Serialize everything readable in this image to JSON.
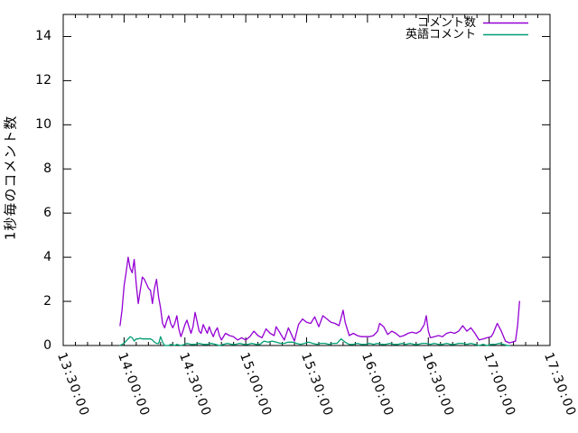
{
  "chart_data": {
    "type": "line",
    "title": "",
    "xlabel": "",
    "ylabel": "1秒毎のコメント数",
    "xlim": [
      "13:30:00",
      "17:30:00"
    ],
    "ylim": [
      0,
      15
    ],
    "grid": false,
    "legend_position": "top-right-inside",
    "x_major_ticks": [
      "13:30:00",
      "14:00:00",
      "14:30:00",
      "15:00:00",
      "15:30:00",
      "16:00:00",
      "16:30:00",
      "17:00:00",
      "17:30:00"
    ],
    "x_minor_tick_interval_minutes": 6,
    "y_ticks": [
      0,
      2,
      4,
      6,
      8,
      10,
      12,
      14
    ],
    "colors": {
      "axis": "#000000",
      "background": "#ffffff",
      "text": "#000000"
    },
    "series": [
      {
        "name": "コメント数",
        "color": "#9400D3",
        "points": [
          [
            "13:58",
            0.9
          ],
          [
            "13:59",
            1.6
          ],
          [
            "14:00",
            2.7
          ],
          [
            "14:01",
            3.3
          ],
          [
            "14:02",
            4.0
          ],
          [
            "14:03",
            3.5
          ],
          [
            "14:04",
            3.3
          ],
          [
            "14:05",
            3.9
          ],
          [
            "14:06",
            2.8
          ],
          [
            "14:07",
            1.9
          ],
          [
            "14:08",
            2.5
          ],
          [
            "14:09",
            3.1
          ],
          [
            "14:10",
            3.0
          ],
          [
            "14:11",
            2.8
          ],
          [
            "14:12",
            2.6
          ],
          [
            "14:13",
            2.5
          ],
          [
            "14:14",
            1.9
          ],
          [
            "14:15",
            2.6
          ],
          [
            "14:16",
            3.0
          ],
          [
            "14:17",
            2.2
          ],
          [
            "14:18",
            1.7
          ],
          [
            "14:19",
            1.0
          ],
          [
            "14:20",
            0.8
          ],
          [
            "14:21",
            1.1
          ],
          [
            "14:22",
            1.35
          ],
          [
            "14:23",
            1.0
          ],
          [
            "14:24",
            0.8
          ],
          [
            "14:25",
            1.0
          ],
          [
            "14:26",
            1.35
          ],
          [
            "14:27",
            0.75
          ],
          [
            "14:28",
            0.4
          ],
          [
            "14:29",
            0.65
          ],
          [
            "14:30",
            0.95
          ],
          [
            "14:31",
            1.15
          ],
          [
            "14:32",
            0.85
          ],
          [
            "14:33",
            0.55
          ],
          [
            "14:34",
            0.85
          ],
          [
            "14:35",
            1.5
          ],
          [
            "14:36",
            1.1
          ],
          [
            "14:37",
            0.65
          ],
          [
            "14:38",
            0.55
          ],
          [
            "14:39",
            0.95
          ],
          [
            "14:40",
            0.75
          ],
          [
            "14:41",
            0.55
          ],
          [
            "14:42",
            0.85
          ],
          [
            "14:43",
            0.6
          ],
          [
            "14:44",
            0.4
          ],
          [
            "14:45",
            0.65
          ],
          [
            "14:46",
            0.8
          ],
          [
            "14:47",
            0.45
          ],
          [
            "14:48",
            0.25
          ],
          [
            "14:50",
            0.55
          ],
          [
            "14:52",
            0.45
          ],
          [
            "14:54",
            0.4
          ],
          [
            "14:56",
            0.25
          ],
          [
            "14:58",
            0.35
          ],
          [
            "15:00",
            0.25
          ],
          [
            "15:02",
            0.4
          ],
          [
            "15:04",
            0.65
          ],
          [
            "15:06",
            0.45
          ],
          [
            "15:08",
            0.35
          ],
          [
            "15:10",
            0.75
          ],
          [
            "15:12",
            0.55
          ],
          [
            "15:14",
            0.45
          ],
          [
            "15:15",
            0.85
          ],
          [
            "15:17",
            0.55
          ],
          [
            "15:19",
            0.25
          ],
          [
            "15:21",
            0.8
          ],
          [
            "15:23",
            0.4
          ],
          [
            "15:24",
            0.2
          ],
          [
            "15:26",
            0.95
          ],
          [
            "15:28",
            1.2
          ],
          [
            "15:30",
            1.05
          ],
          [
            "15:32",
            1.0
          ],
          [
            "15:34",
            1.3
          ],
          [
            "15:36",
            0.85
          ],
          [
            "15:38",
            1.35
          ],
          [
            "15:40",
            1.2
          ],
          [
            "15:42",
            1.05
          ],
          [
            "15:44",
            1.0
          ],
          [
            "15:46",
            0.9
          ],
          [
            "15:48",
            1.6
          ],
          [
            "15:49",
            1.05
          ],
          [
            "15:51",
            0.45
          ],
          [
            "15:53",
            0.55
          ],
          [
            "15:55",
            0.45
          ],
          [
            "15:57",
            0.4
          ],
          [
            "15:59",
            0.4
          ],
          [
            "16:01",
            0.4
          ],
          [
            "16:03",
            0.45
          ],
          [
            "16:05",
            0.65
          ],
          [
            "16:06",
            1.0
          ],
          [
            "16:08",
            0.85
          ],
          [
            "16:10",
            0.5
          ],
          [
            "16:12",
            0.65
          ],
          [
            "16:14",
            0.55
          ],
          [
            "16:16",
            0.4
          ],
          [
            "16:18",
            0.45
          ],
          [
            "16:20",
            0.55
          ],
          [
            "16:22",
            0.6
          ],
          [
            "16:24",
            0.55
          ],
          [
            "16:26",
            0.65
          ],
          [
            "16:28",
            0.95
          ],
          [
            "16:29",
            1.35
          ],
          [
            "16:30",
            0.65
          ],
          [
            "16:31",
            0.35
          ],
          [
            "16:33",
            0.4
          ],
          [
            "16:35",
            0.45
          ],
          [
            "16:37",
            0.4
          ],
          [
            "16:39",
            0.55
          ],
          [
            "16:41",
            0.6
          ],
          [
            "16:43",
            0.55
          ],
          [
            "16:45",
            0.65
          ],
          [
            "16:47",
            0.9
          ],
          [
            "16:49",
            0.65
          ],
          [
            "16:51",
            0.8
          ],
          [
            "16:53",
            0.55
          ],
          [
            "16:55",
            0.25
          ],
          [
            "16:57",
            0.3
          ],
          [
            "16:59",
            0.35
          ],
          [
            "17:01",
            0.4
          ],
          [
            "17:02",
            0.55
          ],
          [
            "17:04",
            1.0
          ],
          [
            "17:06",
            0.65
          ],
          [
            "17:08",
            0.2
          ],
          [
            "17:10",
            0.12
          ],
          [
            "17:13",
            0.2
          ],
          [
            "17:14",
            0.9
          ],
          [
            "17:15",
            2.0
          ]
        ]
      },
      {
        "name": "英語コメント",
        "color": "#009E73",
        "points": [
          [
            "13:58",
            0.0
          ],
          [
            "13:59",
            0.05
          ],
          [
            "14:00",
            0.1
          ],
          [
            "14:01",
            0.2
          ],
          [
            "14:02",
            0.3
          ],
          [
            "14:03",
            0.4
          ],
          [
            "14:04",
            0.35
          ],
          [
            "14:05",
            0.2
          ],
          [
            "14:06",
            0.3
          ],
          [
            "14:07",
            0.3
          ],
          [
            "14:08",
            0.33
          ],
          [
            "14:09",
            0.3
          ],
          [
            "14:10",
            0.3
          ],
          [
            "14:11",
            0.3
          ],
          [
            "14:12",
            0.3
          ],
          [
            "14:13",
            0.3
          ],
          [
            "14:14",
            0.25
          ],
          [
            "14:15",
            0.15
          ],
          [
            "14:16",
            0.1
          ],
          [
            "14:17",
            0.08
          ],
          [
            "14:18",
            0.4
          ],
          [
            "14:19",
            0.15
          ],
          [
            "14:20",
            0.0
          ],
          [
            "14:22",
            0.0
          ],
          [
            "14:23",
            0.05
          ],
          [
            "14:25",
            0.0
          ],
          [
            "14:26",
            0.05
          ],
          [
            "14:28",
            0.0
          ],
          [
            "14:30",
            0.05
          ],
          [
            "14:31",
            0.1
          ],
          [
            "14:33",
            0.05
          ],
          [
            "14:35",
            0.05
          ],
          [
            "14:37",
            0.1
          ],
          [
            "14:39",
            0.05
          ],
          [
            "14:41",
            0.05
          ],
          [
            "14:43",
            0.1
          ],
          [
            "14:45",
            0.05
          ],
          [
            "14:47",
            0.0
          ],
          [
            "14:49",
            0.05
          ],
          [
            "14:51",
            0.1
          ],
          [
            "14:53",
            0.05
          ],
          [
            "14:55",
            0.05
          ],
          [
            "14:57",
            0.1
          ],
          [
            "14:59",
            0.05
          ],
          [
            "15:01",
            0.05
          ],
          [
            "15:03",
            0.1
          ],
          [
            "15:05",
            0.05
          ],
          [
            "15:07",
            0.05
          ],
          [
            "15:09",
            0.2
          ],
          [
            "15:11",
            0.15
          ],
          [
            "15:13",
            0.2
          ],
          [
            "15:15",
            0.15
          ],
          [
            "15:17",
            0.1
          ],
          [
            "15:19",
            0.1
          ],
          [
            "15:21",
            0.15
          ],
          [
            "15:23",
            0.15
          ],
          [
            "15:25",
            0.1
          ],
          [
            "15:27",
            0.05
          ],
          [
            "15:29",
            0.1
          ],
          [
            "15:31",
            0.15
          ],
          [
            "15:33",
            0.1
          ],
          [
            "15:35",
            0.05
          ],
          [
            "15:37",
            0.1
          ],
          [
            "15:39",
            0.1
          ],
          [
            "15:41",
            0.05
          ],
          [
            "15:43",
            0.1
          ],
          [
            "15:45",
            0.1
          ],
          [
            "15:47",
            0.3
          ],
          [
            "15:49",
            0.15
          ],
          [
            "15:51",
            0.05
          ],
          [
            "15:53",
            0.05
          ],
          [
            "15:55",
            0.1
          ],
          [
            "15:57",
            0.05
          ],
          [
            "15:59",
            0.05
          ],
          [
            "16:01",
            0.1
          ],
          [
            "16:03",
            0.05
          ],
          [
            "16:05",
            0.1
          ],
          [
            "16:07",
            0.05
          ],
          [
            "16:09",
            0.05
          ],
          [
            "16:11",
            0.1
          ],
          [
            "16:13",
            0.05
          ],
          [
            "16:15",
            0.05
          ],
          [
            "16:17",
            0.1
          ],
          [
            "16:19",
            0.05
          ],
          [
            "16:21",
            0.1
          ],
          [
            "16:23",
            0.05
          ],
          [
            "16:25",
            0.05
          ],
          [
            "16:27",
            0.1
          ],
          [
            "16:29",
            0.1
          ],
          [
            "16:31",
            0.05
          ],
          [
            "16:33",
            0.1
          ],
          [
            "16:35",
            0.05
          ],
          [
            "16:37",
            0.05
          ],
          [
            "16:39",
            0.1
          ],
          [
            "16:41",
            0.05
          ],
          [
            "16:43",
            0.05
          ],
          [
            "16:45",
            0.1
          ],
          [
            "16:47",
            0.1
          ],
          [
            "16:49",
            0.05
          ],
          [
            "16:51",
            0.1
          ],
          [
            "16:53",
            0.05
          ],
          [
            "16:55",
            0.0
          ],
          [
            "16:57",
            0.05
          ],
          [
            "16:59",
            0.0
          ],
          [
            "17:01",
            0.05
          ],
          [
            "17:03",
            0.05
          ],
          [
            "17:05",
            0.1
          ],
          [
            "17:07",
            0.05
          ],
          [
            "17:09",
            0.0
          ],
          [
            "17:10",
            0.0
          ]
        ]
      }
    ]
  }
}
